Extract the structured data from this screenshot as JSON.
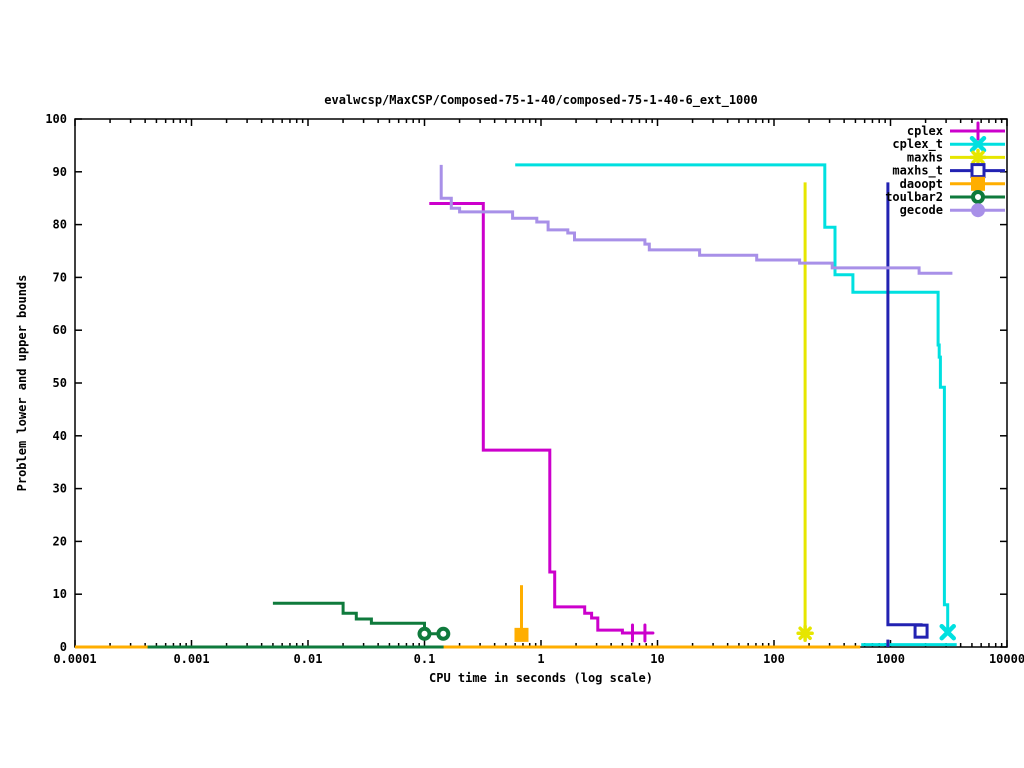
{
  "window": {
    "background": "#ffffff"
  },
  "chart_data": {
    "type": "line",
    "title": "evalwcsp/MaxCSP/Composed-75-1-40/composed-75-1-40-6_ext_1000",
    "xlabel": "CPU time in seconds (log scale)",
    "ylabel": "Problem lower and upper bounds",
    "x_scale": "log",
    "xlim": [
      0.0001,
      10000
    ],
    "ylim": [
      0,
      100
    ],
    "x_tick_labels": [
      "0.0001",
      "0.001",
      "0.01",
      "0.1",
      "1",
      "10",
      "100",
      "1000",
      "10000"
    ],
    "y_tick_labels": [
      "0",
      "10",
      "20",
      "30",
      "40",
      "50",
      "60",
      "70",
      "80",
      "90",
      "100"
    ],
    "grid": false,
    "legend_position": "top-right-inside",
    "series": [
      {
        "name": "cplex",
        "color": "#cc00cc",
        "marker": "plus",
        "points": [
          [
            0.11,
            84
          ],
          [
            0.32,
            84
          ],
          [
            0.32,
            37.3
          ],
          [
            1.19,
            37.3
          ],
          [
            1.19,
            14.2
          ],
          [
            1.31,
            14.2
          ],
          [
            1.31,
            7.6
          ],
          [
            2.37,
            7.6
          ],
          [
            2.37,
            6.4
          ],
          [
            2.72,
            6.4
          ],
          [
            2.72,
            5.5
          ],
          [
            3.07,
            5.5
          ],
          [
            3.07,
            3.2
          ],
          [
            5.0,
            3.2
          ],
          [
            5.0,
            2.65
          ],
          [
            8.2,
            2.65
          ]
        ],
        "marker_points": [
          [
            6.1,
            2.65
          ],
          [
            7.8,
            2.65
          ]
        ],
        "extra_segments": []
      },
      {
        "name": "cplex_t",
        "color": "#00e0e0",
        "marker": "cross",
        "points": [
          [
            0.6,
            91.3
          ],
          [
            273,
            91.3
          ],
          [
            273,
            79.5
          ],
          [
            334,
            79.5
          ],
          [
            334,
            70.5
          ],
          [
            476,
            70.5
          ],
          [
            476,
            67.2
          ],
          [
            2560,
            67.2
          ],
          [
            2560,
            57.2
          ],
          [
            2620,
            57.2
          ],
          [
            2620,
            54.9
          ],
          [
            2680,
            54.9
          ],
          [
            2680,
            49.2
          ],
          [
            2900,
            49.2
          ],
          [
            2900,
            8
          ],
          [
            3100,
            8
          ],
          [
            3100,
            2.8
          ]
        ],
        "marker_points": [
          [
            3100,
            2.8
          ]
        ],
        "extra_segments": [
          [
            [
              560,
              0.45
            ],
            [
              3700,
              0.45
            ]
          ]
        ]
      },
      {
        "name": "maxhs",
        "color": "#e6e600",
        "marker": "star",
        "points": [
          [
            185,
            88
          ],
          [
            185,
            2.6
          ]
        ],
        "marker_points": [
          [
            185,
            2.6
          ]
        ],
        "extra_segments": []
      },
      {
        "name": "maxhs_t",
        "color": "#2222b2",
        "marker": "square-open",
        "points": [
          [
            950,
            88
          ],
          [
            950,
            4.2
          ],
          [
            1830,
            4.2
          ],
          [
            1830,
            3.0
          ]
        ],
        "marker_points": [
          [
            1830,
            3.0
          ]
        ],
        "extra_segments": [
          [
            [
              950,
              0
            ],
            [
              950,
              1.4
            ]
          ]
        ]
      },
      {
        "name": "daoopt",
        "color": "#ffae00",
        "marker": "square-filled",
        "points": [
          [
            0.68,
            11.7
          ],
          [
            0.68,
            2.3
          ]
        ],
        "marker_points": [
          [
            0.68,
            2.3
          ]
        ],
        "extra_segments": [
          [
            [
              0.0001,
              0
            ],
            [
              550,
              0
            ]
          ]
        ]
      },
      {
        "name": "toulbar2",
        "color": "#0f7a3c",
        "marker": "circle-open",
        "points": [
          [
            0.005,
            8.3
          ],
          [
            0.02,
            8.3
          ],
          [
            0.02,
            6.4
          ],
          [
            0.026,
            6.4
          ],
          [
            0.026,
            5.3
          ],
          [
            0.035,
            5.3
          ],
          [
            0.035,
            4.5
          ],
          [
            0.1,
            4.5
          ],
          [
            0.1,
            2.5
          ],
          [
            0.145,
            2.5
          ]
        ],
        "marker_points": [
          [
            0.1,
            2.5
          ],
          [
            0.145,
            2.5
          ]
        ],
        "extra_segments": [
          [
            [
              0.00042,
              0
            ],
            [
              0.146,
              0
            ]
          ]
        ]
      },
      {
        "name": "gecode",
        "color": "#a890e8",
        "marker": "circle-filled",
        "points": [
          [
            0.139,
            91.3
          ],
          [
            0.139,
            85
          ],
          [
            0.17,
            85
          ],
          [
            0.17,
            83.1
          ],
          [
            0.2,
            83.1
          ],
          [
            0.2,
            82.4
          ],
          [
            0.57,
            82.4
          ],
          [
            0.57,
            81.2
          ],
          [
            0.92,
            81.2
          ],
          [
            0.92,
            80.5
          ],
          [
            1.15,
            80.5
          ],
          [
            1.15,
            79
          ],
          [
            1.7,
            79
          ],
          [
            1.7,
            78.4
          ],
          [
            1.94,
            78.4
          ],
          [
            1.94,
            77.1
          ],
          [
            7.8,
            77.1
          ],
          [
            7.8,
            76.3
          ],
          [
            8.5,
            76.3
          ],
          [
            8.5,
            75.2
          ],
          [
            23,
            75.2
          ],
          [
            23,
            74.2
          ],
          [
            71,
            74.2
          ],
          [
            71,
            73.3
          ],
          [
            166,
            73.3
          ],
          [
            166,
            72.7
          ],
          [
            316,
            72.7
          ],
          [
            316,
            71.8
          ],
          [
            1760,
            71.8
          ],
          [
            1760,
            70.8
          ],
          [
            3400,
            70.8
          ]
        ],
        "marker_points": [],
        "extra_segments": []
      }
    ]
  }
}
